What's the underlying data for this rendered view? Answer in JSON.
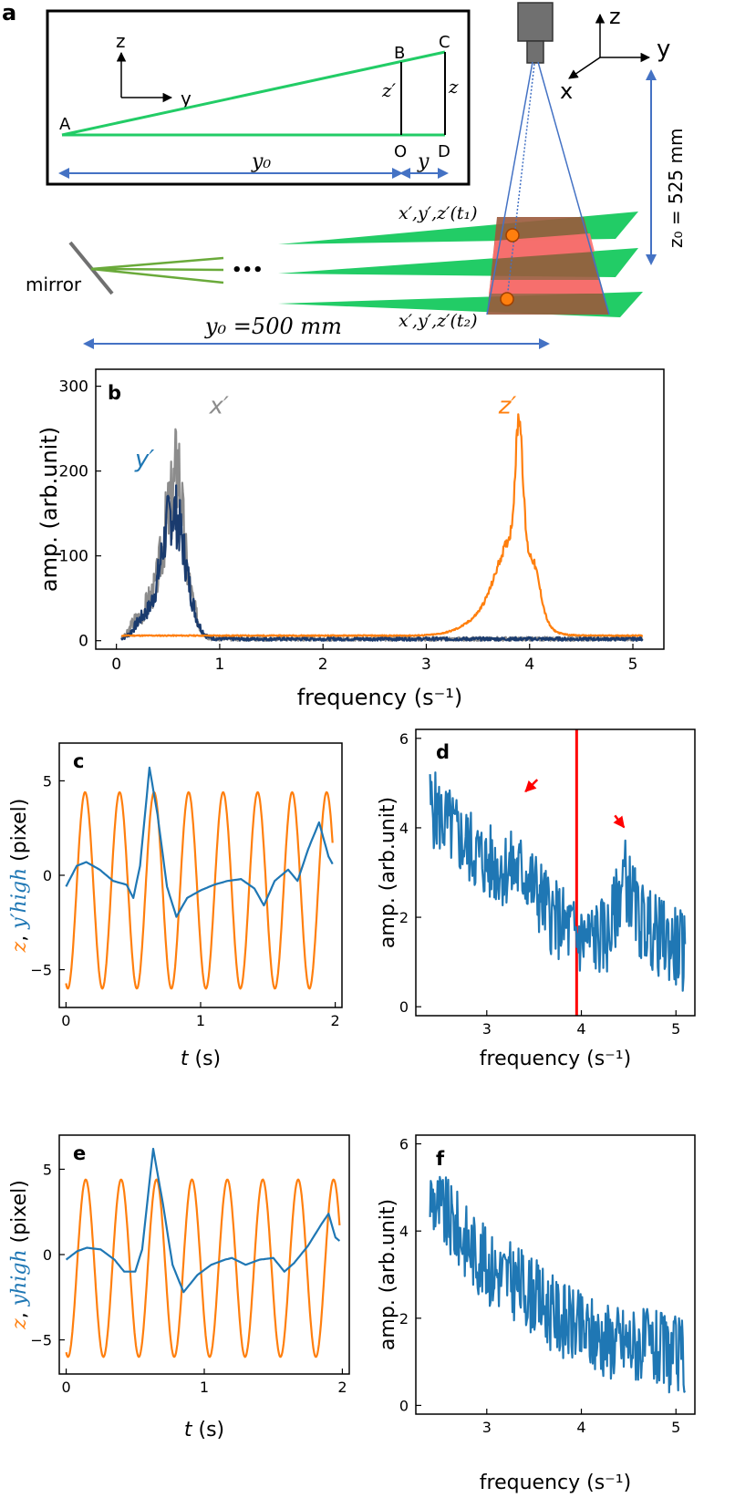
{
  "colors": {
    "blue": "#1f77b4",
    "orange": "#ff7f0e",
    "gray": "#8c8c8c",
    "navy": "#1a3b6e",
    "green": "#22cc66",
    "olive": "#6aaa3a",
    "arrow_blue": "#4472c4",
    "red": "#ff0000",
    "brown": "#9b5a3c",
    "pink": "#ff7070"
  },
  "panel_a": {
    "label": "a",
    "inset": {
      "axis_z": "z",
      "axis_y": "y",
      "pt_A": "A",
      "pt_B": "B",
      "pt_C": "C",
      "pt_O": "O",
      "pt_D": "D",
      "z_prime": "z′",
      "z": "z",
      "y0": "y₀",
      "y": "y"
    },
    "camera_axes": {
      "z": "z",
      "y": "y",
      "x": "x"
    },
    "z0_label": "z₀ = 525 mm",
    "t1_label": "x′,y′,z′(t₁)",
    "t2_label": "x′,y′,z′(t₂)",
    "mirror_label": "mirror",
    "dots": "•••",
    "y0_label": "y₀ =500 mm"
  },
  "chart_data": [
    {
      "id": "b",
      "type": "line",
      "label": "b",
      "xlabel": "frequency (s⁻¹)",
      "ylabel": "amp. (arb.unit)",
      "xlim": [
        -0.2,
        5.3
      ],
      "ylim": [
        -10,
        320
      ],
      "xticks": [
        0,
        1,
        2,
        3,
        4,
        5
      ],
      "yticks": [
        0,
        100,
        200,
        300
      ],
      "x_range": [
        0.05,
        5.1
      ],
      "series": [
        {
          "name": "x′",
          "color": "#8c8c8c",
          "peaks": [
            [
              0.55,
              160,
              0.12
            ],
            [
              0.6,
              60,
              0.03
            ],
            [
              0.18,
              20,
              0.05
            ],
            [
              0.3,
              25,
              0.05
            ]
          ],
          "baseline": 2,
          "noise": 25,
          "seed": 3
        },
        {
          "name": "y′",
          "color": "#1a3b6e",
          "peaks": [
            [
              0.55,
              150,
              0.12
            ],
            [
              0.25,
              20,
              0.08
            ]
          ],
          "baseline": 2,
          "noise": 20,
          "seed": 7
        },
        {
          "name": "z′",
          "color": "#ff7f0e",
          "peaks": [
            [
              3.9,
              150,
              0.035
            ],
            [
              3.85,
              90,
              0.15
            ],
            [
              3.7,
              30,
              0.25
            ],
            [
              4.05,
              35,
              0.06
            ]
          ],
          "baseline": 6,
          "noise": 4,
          "seed": 11
        }
      ],
      "labels": [
        {
          "text": "x′",
          "x": 0.9,
          "y": 268
        },
        {
          "text": "y′",
          "x": 0.18,
          "y": 205
        },
        {
          "text": "z′",
          "x": 3.7,
          "y": 268
        }
      ]
    },
    {
      "id": "c",
      "type": "line",
      "label": "c",
      "xlabel": "t (s)",
      "ylabel": "z, y′high (pixel)",
      "xlim": [
        -0.05,
        2.05
      ],
      "ylim": [
        -7,
        7
      ],
      "xticks": [
        0,
        1,
        2
      ],
      "yticks": [
        -5,
        0,
        5
      ],
      "x_range": [
        0,
        1.98
      ],
      "series": [
        {
          "name": "z",
          "color": "#ff7f0e",
          "kind": "sine",
          "amp": 5.2,
          "freq": 3.9,
          "offset": -0.8,
          "phase": -1.9
        },
        {
          "name": "y′high",
          "color": "#1f77b4",
          "kind": "wiggle",
          "points": [
            [
              0,
              -0.6
            ],
            [
              0.08,
              0.5
            ],
            [
              0.15,
              0.7
            ],
            [
              0.25,
              0.3
            ],
            [
              0.35,
              -0.3
            ],
            [
              0.45,
              -0.5
            ],
            [
              0.5,
              -1.2
            ],
            [
              0.55,
              0.5
            ],
            [
              0.62,
              5.7
            ],
            [
              0.68,
              3.2
            ],
            [
              0.75,
              -0.6
            ],
            [
              0.82,
              -2.2
            ],
            [
              0.9,
              -1.2
            ],
            [
              1.0,
              -0.8
            ],
            [
              1.1,
              -0.5
            ],
            [
              1.2,
              -0.3
            ],
            [
              1.3,
              -0.2
            ],
            [
              1.4,
              -0.7
            ],
            [
              1.47,
              -1.6
            ],
            [
              1.55,
              -0.3
            ],
            [
              1.65,
              0.3
            ],
            [
              1.72,
              -0.3
            ],
            [
              1.8,
              1.4
            ],
            [
              1.88,
              2.8
            ],
            [
              1.95,
              1.0
            ],
            [
              1.98,
              0.6
            ]
          ]
        }
      ]
    },
    {
      "id": "d",
      "type": "line",
      "label": "d",
      "xlabel": "frequency (s⁻¹)",
      "ylabel": "amp. (arb.unit)",
      "xlim": [
        2.25,
        5.2
      ],
      "ylim": [
        -0.2,
        6.2
      ],
      "xticks": [
        3,
        4,
        5
      ],
      "yticks": [
        0,
        2,
        4,
        6
      ],
      "x_range": [
        2.4,
        5.1
      ],
      "series": [
        {
          "name": "y′high",
          "color": "#1f77b4",
          "kind": "noisy",
          "trend": [
            [
              2.4,
              4.5
            ],
            [
              2.7,
              3.8
            ],
            [
              3.0,
              3.2
            ],
            [
              3.4,
              3.0
            ],
            [
              3.7,
              2.0
            ],
            [
              4.0,
              1.5
            ],
            [
              4.3,
              1.6
            ],
            [
              4.45,
              3.0
            ],
            [
              4.6,
              2.0
            ],
            [
              4.8,
              1.6
            ],
            [
              5.1,
              1.2
            ]
          ],
          "noise": 0.9,
          "seed": 5
        }
      ],
      "vline": {
        "x": 3.95,
        "color": "#ff0000"
      },
      "arrows": [
        {
          "x": 3.38,
          "y": 4.75
        },
        {
          "x": 4.47,
          "y": 3.95
        }
      ]
    },
    {
      "id": "e",
      "type": "line",
      "label": "e",
      "xlabel": "t (s)",
      "ylabel": "z, yhigh (pixel)",
      "xlim": [
        -0.05,
        2.05
      ],
      "ylim": [
        -7,
        7
      ],
      "xticks": [
        0,
        1,
        2
      ],
      "yticks": [
        -5,
        0,
        5
      ],
      "x_range": [
        0,
        1.98
      ],
      "series": [
        {
          "name": "z",
          "color": "#ff7f0e",
          "kind": "sine",
          "amp": 5.2,
          "freq": 3.9,
          "offset": -0.8,
          "phase": -1.9
        },
        {
          "name": "yhigh",
          "color": "#1f77b4",
          "kind": "wiggle",
          "points": [
            [
              0,
              -0.3
            ],
            [
              0.08,
              0.2
            ],
            [
              0.15,
              0.4
            ],
            [
              0.25,
              0.3
            ],
            [
              0.35,
              -0.3
            ],
            [
              0.42,
              -1.0
            ],
            [
              0.5,
              -1.0
            ],
            [
              0.55,
              0.3
            ],
            [
              0.63,
              6.2
            ],
            [
              0.7,
              3.0
            ],
            [
              0.77,
              -0.6
            ],
            [
              0.85,
              -2.2
            ],
            [
              0.95,
              -1.2
            ],
            [
              1.05,
              -0.6
            ],
            [
              1.15,
              -0.3
            ],
            [
              1.2,
              -0.2
            ],
            [
              1.3,
              -0.6
            ],
            [
              1.4,
              -0.3
            ],
            [
              1.5,
              -0.2
            ],
            [
              1.58,
              -1.0
            ],
            [
              1.65,
              -0.5
            ],
            [
              1.75,
              0.5
            ],
            [
              1.85,
              1.8
            ],
            [
              1.9,
              2.4
            ],
            [
              1.95,
              1.0
            ],
            [
              1.98,
              0.8
            ]
          ]
        }
      ]
    },
    {
      "id": "f",
      "type": "line",
      "label": "f",
      "xlabel": "frequency (s⁻¹)",
      "ylabel": "amp. (arb.unit)",
      "xlim": [
        2.25,
        5.2
      ],
      "ylim": [
        -0.2,
        6.2
      ],
      "xticks": [
        3,
        4,
        5
      ],
      "yticks": [
        0,
        2,
        4,
        6
      ],
      "x_range": [
        2.4,
        5.1
      ],
      "series": [
        {
          "name": "yhigh",
          "color": "#1f77b4",
          "kind": "noisy",
          "trend": [
            [
              2.4,
              4.8
            ],
            [
              2.7,
              4.0
            ],
            [
              3.0,
              3.2
            ],
            [
              3.4,
              2.7
            ],
            [
              3.7,
              2.1
            ],
            [
              4.0,
              1.7
            ],
            [
              4.3,
              1.5
            ],
            [
              4.6,
              1.4
            ],
            [
              4.9,
              1.2
            ],
            [
              5.1,
              1.1
            ]
          ],
          "noise": 0.9,
          "seed": 9
        }
      ]
    }
  ]
}
